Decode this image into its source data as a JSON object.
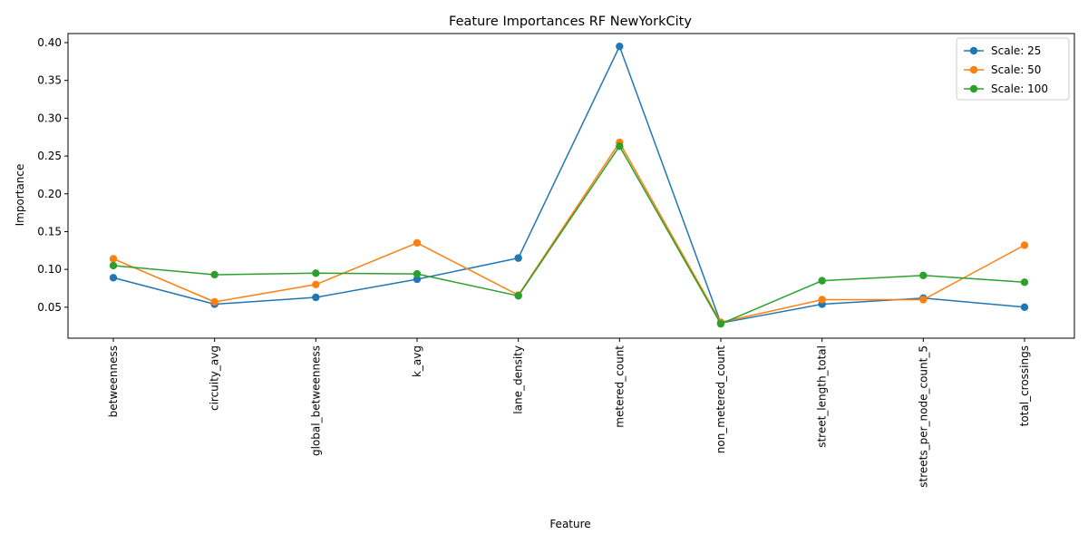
{
  "chart_data": {
    "type": "line",
    "title": "Feature Importances RF NewYorkCity",
    "xlabel": "Feature",
    "ylabel": "Importance",
    "categories": [
      "betweenness",
      "circuity_avg",
      "global_betweenness",
      "k_avg",
      "lane_density",
      "metered_count",
      "non_metered_count",
      "street_length_total",
      "streets_per_node_count_5",
      "total_crossings"
    ],
    "ylim": [
      0.009,
      0.412
    ],
    "yticks": [
      "0.05",
      "0.10",
      "0.15",
      "0.20",
      "0.25",
      "0.30",
      "0.35",
      "0.40"
    ],
    "grid": false,
    "legend_position": "top-right",
    "series": [
      {
        "name": "Scale: 25",
        "color": "#1f77b4",
        "values": [
          0.089,
          0.054,
          0.063,
          0.087,
          0.115,
          0.395,
          0.029,
          0.054,
          0.062,
          0.05
        ]
      },
      {
        "name": "Scale: 50",
        "color": "#ff7f0e",
        "values": [
          0.114,
          0.057,
          0.08,
          0.135,
          0.066,
          0.268,
          0.03,
          0.06,
          0.06,
          0.132
        ]
      },
      {
        "name": "Scale: 100",
        "color": "#2ca02c",
        "values": [
          0.105,
          0.093,
          0.095,
          0.094,
          0.065,
          0.263,
          0.028,
          0.085,
          0.092,
          0.083
        ]
      }
    ]
  }
}
